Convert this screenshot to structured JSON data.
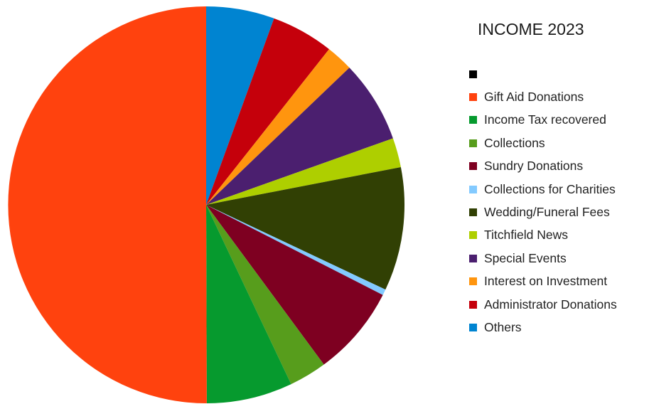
{
  "chart_data": {
    "type": "pie",
    "title": "INCOME 2023",
    "legend_position": "right",
    "slices": [
      {
        "label": "",
        "value": 0,
        "color": "#000000"
      },
      {
        "label": "Gift Aid Donations",
        "value": 52.2,
        "color": "#ff420e"
      },
      {
        "label": "Income Tax recovered",
        "value": 7.3,
        "color": "#069a2e"
      },
      {
        "label": "Collections",
        "value": 3.2,
        "color": "#579d1c"
      },
      {
        "label": "Sundry Donations",
        "value": 7.7,
        "color": "#7e0021"
      },
      {
        "label": "Collections for Charities",
        "value": 0.5,
        "color": "#83caff"
      },
      {
        "label": "Wedding/Funeral Fees",
        "value": 10.5,
        "color": "#314004"
      },
      {
        "label": "Titchfield News",
        "value": 2.5,
        "color": "#aecf00"
      },
      {
        "label": "Special Events",
        "value": 7.0,
        "color": "#4b1f6f"
      },
      {
        "label": "Interest on Investment",
        "value": 2.3,
        "color": "#ff950e"
      },
      {
        "label": "Administrator Donations",
        "value": 5.3,
        "color": "#c5000b"
      },
      {
        "label": "Others",
        "value": 5.8,
        "color": "#0084d1"
      }
    ]
  }
}
